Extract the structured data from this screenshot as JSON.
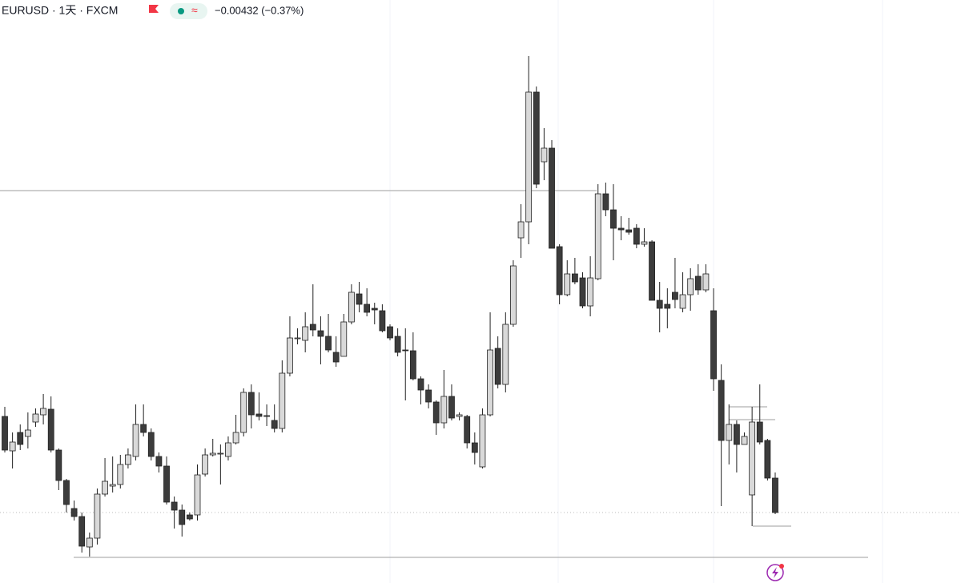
{
  "chart_data": {
    "type": "candlestick",
    "title": "EURUSD · 1天 · FXCM",
    "subtitle": "−0.00432 (−0.37%)",
    "ylim": [
      0,
      700
    ],
    "up_color": "#d9d9d9",
    "down_color": "#3c3c3c",
    "ohlc": [
      [
        180,
        192,
        135,
        138
      ],
      [
        137,
        160,
        115,
        148
      ],
      [
        160,
        170,
        138,
        145
      ],
      [
        155,
        185,
        140,
        163
      ],
      [
        173,
        190,
        167,
        183
      ],
      [
        182,
        208,
        170,
        190
      ],
      [
        189,
        205,
        135,
        138
      ],
      [
        138,
        140,
        88,
        100
      ],
      [
        100,
        102,
        60,
        70
      ],
      [
        65,
        75,
        50,
        55
      ],
      [
        55,
        60,
        10,
        18
      ],
      [
        17,
        35,
        5,
        28
      ],
      [
        28,
        90,
        20,
        83
      ],
      [
        83,
        128,
        80,
        99
      ],
      [
        93,
        130,
        85,
        95
      ],
      [
        95,
        132,
        90,
        120
      ],
      [
        120,
        140,
        115,
        132
      ],
      [
        130,
        195,
        125,
        170
      ],
      [
        170,
        195,
        155,
        160
      ],
      [
        160,
        165,
        125,
        130
      ],
      [
        130,
        135,
        110,
        118
      ],
      [
        118,
        130,
        70,
        73
      ],
      [
        73,
        80,
        40,
        63
      ],
      [
        63,
        70,
        30,
        45
      ],
      [
        57,
        60,
        50,
        52
      ],
      [
        57,
        120,
        50,
        107
      ],
      [
        108,
        140,
        105,
        132
      ],
      [
        132,
        152,
        130,
        134
      ],
      [
        133,
        145,
        95,
        134
      ],
      [
        130,
        155,
        125,
        147
      ],
      [
        147,
        182,
        145,
        160
      ],
      [
        160,
        215,
        155,
        210
      ],
      [
        210,
        220,
        165,
        182
      ],
      [
        183,
        210,
        175,
        180
      ],
      [
        181,
        195,
        168,
        180
      ],
      [
        175,
        195,
        160,
        165
      ],
      [
        165,
        250,
        160,
        234
      ],
      [
        234,
        305,
        230,
        278
      ],
      [
        277,
        290,
        270,
        278
      ],
      [
        275,
        310,
        260,
        292
      ],
      [
        295,
        345,
        280,
        288
      ],
      [
        287,
        305,
        245,
        280
      ],
      [
        280,
        308,
        260,
        263
      ],
      [
        260,
        280,
        242,
        248
      ],
      [
        255,
        308,
        255,
        298
      ],
      [
        298,
        345,
        295,
        335
      ],
      [
        333,
        348,
        310,
        320
      ],
      [
        320,
        340,
        305,
        310
      ],
      [
        315,
        322,
        295,
        313
      ],
      [
        312,
        320,
        285,
        287
      ],
      [
        292,
        295,
        275,
        278
      ],
      [
        280,
        290,
        255,
        260
      ],
      [
        263,
        290,
        200,
        262
      ],
      [
        262,
        285,
        225,
        227
      ],
      [
        227,
        230,
        195,
        213
      ],
      [
        213,
        220,
        190,
        198
      ],
      [
        198,
        200,
        157,
        172
      ],
      [
        172,
        238,
        165,
        205
      ],
      [
        205,
        220,
        175,
        178
      ],
      [
        180,
        185,
        175,
        182
      ],
      [
        180,
        182,
        140,
        147
      ],
      [
        147,
        160,
        120,
        135
      ],
      [
        117,
        190,
        115,
        182
      ],
      [
        182,
        310,
        180,
        263
      ],
      [
        265,
        280,
        215,
        220
      ],
      [
        220,
        310,
        210,
        295
      ],
      [
        295,
        375,
        292,
        368
      ],
      [
        403,
        445,
        378,
        423
      ],
      [
        423,
        630,
        395,
        585
      ],
      [
        585,
        592,
        465,
        470
      ],
      [
        498,
        540,
        475,
        515
      ],
      [
        515,
        525,
        390,
        390
      ],
      [
        392,
        395,
        320,
        332
      ],
      [
        332,
        375,
        330,
        358
      ],
      [
        358,
        378,
        345,
        348
      ],
      [
        353,
        360,
        315,
        318
      ],
      [
        318,
        380,
        305,
        353
      ],
      [
        352,
        470,
        350,
        458
      ],
      [
        458,
        472,
        430,
        438
      ],
      [
        438,
        470,
        375,
        415
      ],
      [
        415,
        430,
        400,
        413
      ],
      [
        413,
        428,
        407,
        410
      ],
      [
        415,
        420,
        390,
        395
      ],
      [
        395,
        415,
        392,
        398
      ],
      [
        398,
        400,
        325,
        325
      ],
      [
        325,
        348,
        285,
        315
      ],
      [
        320,
        340,
        290,
        315
      ],
      [
        335,
        378,
        315,
        326
      ],
      [
        315,
        360,
        310,
        332
      ],
      [
        332,
        365,
        312,
        352
      ],
      [
        355,
        370,
        332,
        338
      ],
      [
        338,
        370,
        335,
        358
      ],
      [
        312,
        340,
        212,
        227
      ],
      [
        225,
        245,
        68,
        150
      ],
      [
        150,
        195,
        120,
        170
      ],
      [
        170,
        175,
        110,
        145
      ],
      [
        145,
        160,
        145,
        155
      ],
      [
        82,
        192,
        43,
        173
      ],
      [
        173,
        220,
        145,
        148
      ],
      [
        150,
        152,
        100,
        103
      ],
      [
        103,
        110,
        58,
        60
      ]
    ]
  }
}
